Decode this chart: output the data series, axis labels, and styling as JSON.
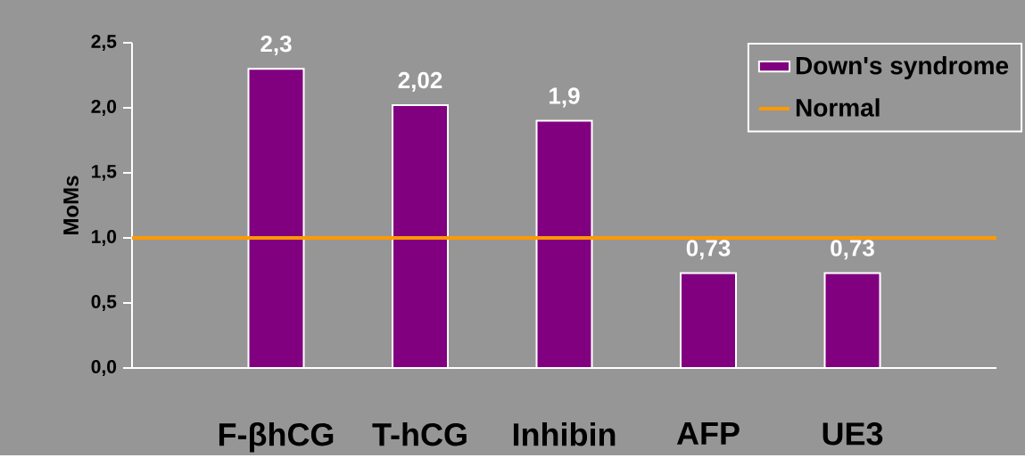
{
  "chart_data": {
    "type": "bar",
    "ylabel": "MoMs",
    "categories": [
      "F-βhCG",
      "T-hCG",
      "Inhibin",
      "AFP",
      "UE3"
    ],
    "series": [
      {
        "name": "Down's syndrome",
        "color": "#800080",
        "values": [
          2.3,
          2.02,
          1.9,
          0.73,
          0.73
        ],
        "value_labels": [
          "2,3",
          "2,02",
          "1,9",
          "0,73",
          "0,73"
        ]
      }
    ],
    "ref_lines": [
      {
        "axis": "y",
        "value": 1,
        "label": "Normal",
        "color": "#ff9900"
      }
    ],
    "ylim": [
      0,
      2.5
    ],
    "yticks": [
      {
        "value": 0,
        "label": "0,0"
      },
      {
        "value": 0.5,
        "label": "0,5"
      },
      {
        "value": 1,
        "label": "1,0"
      },
      {
        "value": 1.5,
        "label": "1,5"
      },
      {
        "value": 2,
        "label": "2,0"
      },
      {
        "value": 2.5,
        "label": "2,5"
      }
    ],
    "legend": "top right"
  }
}
